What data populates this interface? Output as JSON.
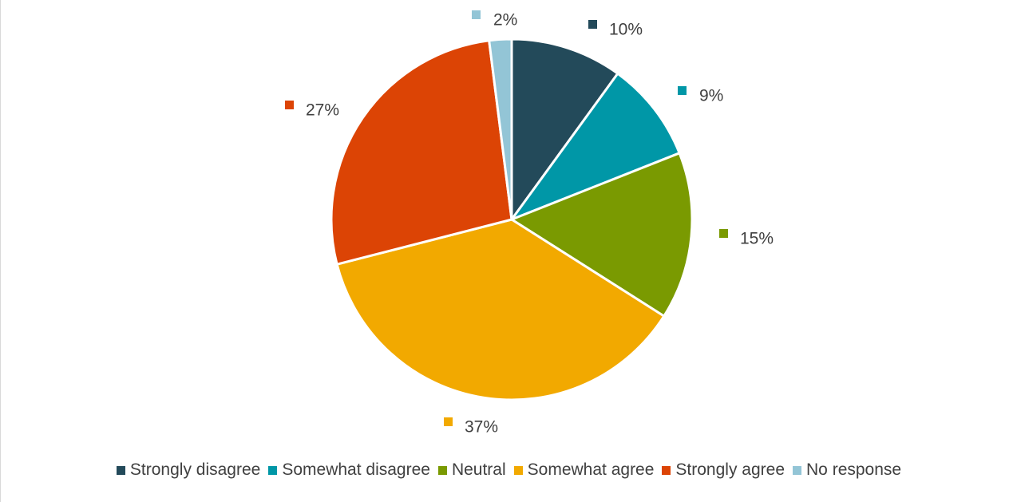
{
  "chart_data": {
    "type": "pie",
    "title": "",
    "categories": [
      "Strongly disagree",
      "Somewhat disagree",
      "Neutral",
      "Somewhat agree",
      "Strongly agree",
      "No response"
    ],
    "values": [
      10,
      9,
      15,
      37,
      27,
      2
    ],
    "labels": [
      "10%",
      "9%",
      "15%",
      "37%",
      "27%",
      "2%"
    ],
    "colors": [
      "#234a5a",
      "#0097a7",
      "#7a9a01",
      "#f2a900",
      "#dc4405",
      "#93c5d6"
    ],
    "legend_position": "bottom",
    "start_angle_deg": 0,
    "direction": "clockwise"
  }
}
